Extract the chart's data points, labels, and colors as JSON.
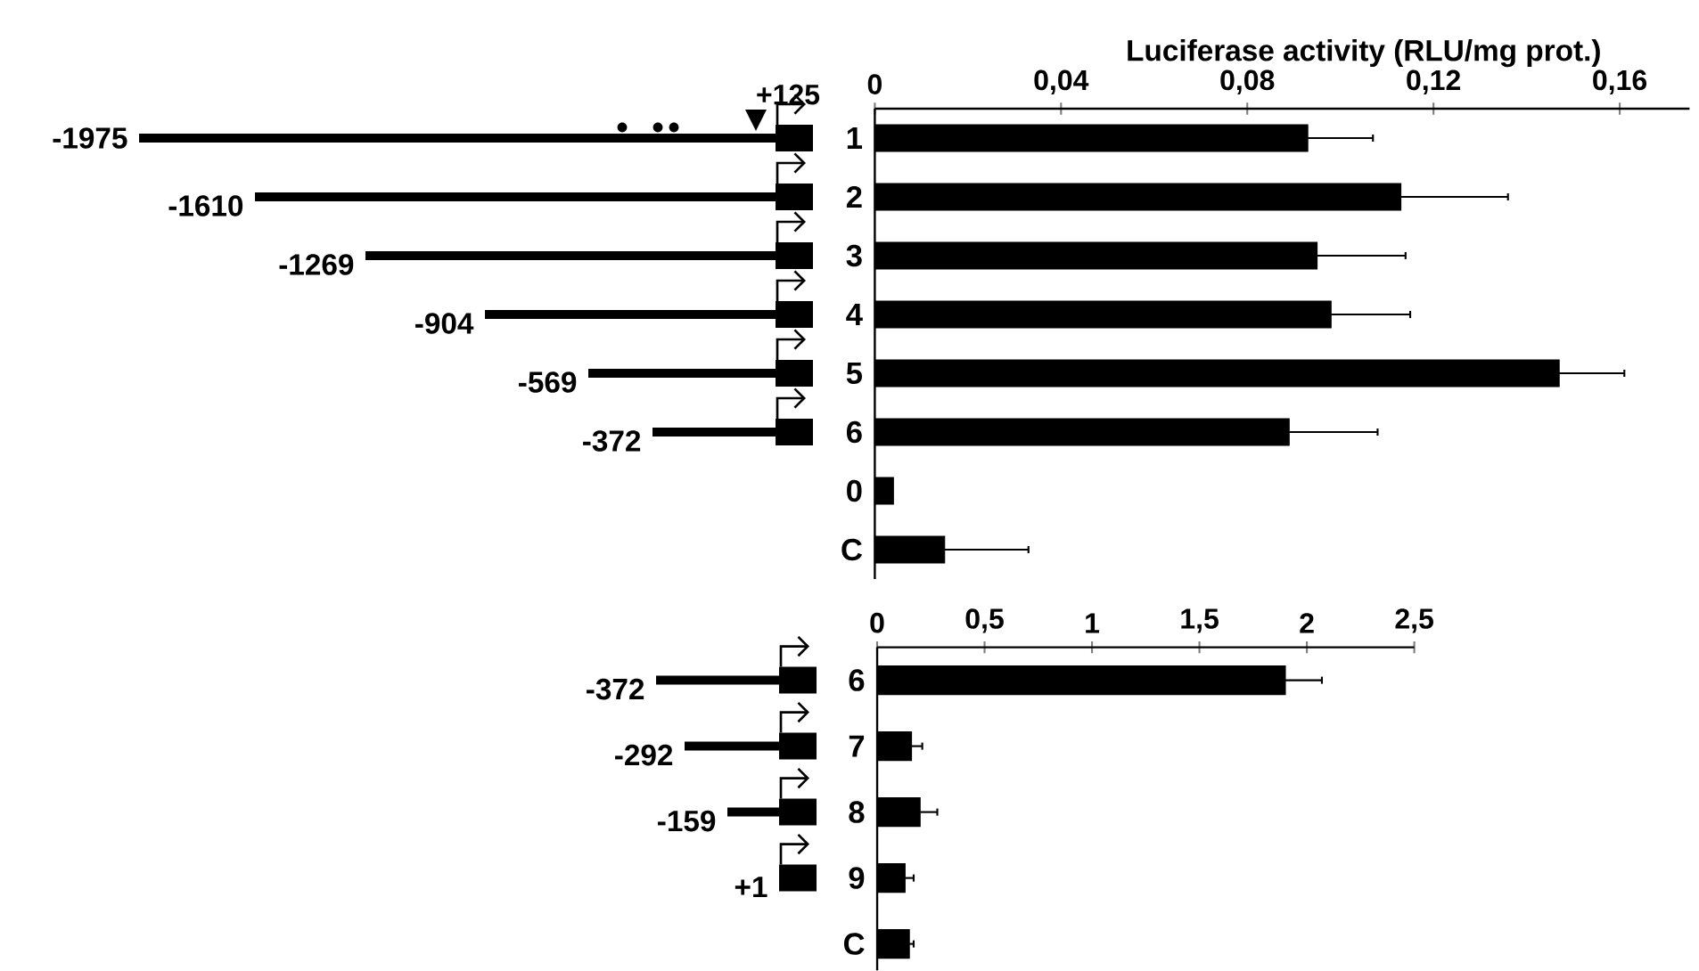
{
  "chart_data": [
    {
      "type": "bar",
      "orientation": "horizontal",
      "xlabel": "Luciferase activity (RLU/mg prot.)",
      "categories": [
        "1",
        "2",
        "3",
        "4",
        "5",
        "6",
        "0",
        "C"
      ],
      "values": [
        0.093,
        0.113,
        0.095,
        0.098,
        0.147,
        0.089,
        0.004,
        0.015
      ],
      "errors": [
        0.014,
        0.023,
        0.019,
        0.017,
        0.014,
        0.019,
        null,
        0.018
      ],
      "color": "#000000",
      "xlim": [
        0,
        0.175
      ],
      "xticks": [
        0,
        {
          "value": 0.04,
          "label": "0,04"
        },
        {
          "value": 0.08,
          "label": "0,08"
        },
        {
          "value": 0.12,
          "label": "0,12"
        },
        {
          "value": 0.16,
          "label": "0,16"
        }
      ],
      "annotations": [
        "-1975",
        "-1610",
        "-1269",
        "-904",
        "-569",
        "-372",
        "+125"
      ]
    },
    {
      "type": "bar",
      "orientation": "horizontal",
      "categories": [
        "6",
        "7",
        "8",
        "9",
        "C"
      ],
      "values": [
        1.9,
        0.16,
        0.2,
        0.13,
        0.15
      ],
      "errors": [
        0.17,
        0.05,
        0.08,
        0.04,
        0.02
      ],
      "color": "#000000",
      "xlim": [
        0,
        2.5
      ],
      "xticks": [
        0,
        {
          "value": 0.5,
          "label": "0,5"
        },
        1,
        {
          "value": 1.5,
          "label": "1,5"
        },
        2,
        {
          "value": 2.5,
          "label": "2,5"
        }
      ],
      "annotations": [
        "-372",
        "-292",
        "-159",
        "+1"
      ]
    }
  ]
}
